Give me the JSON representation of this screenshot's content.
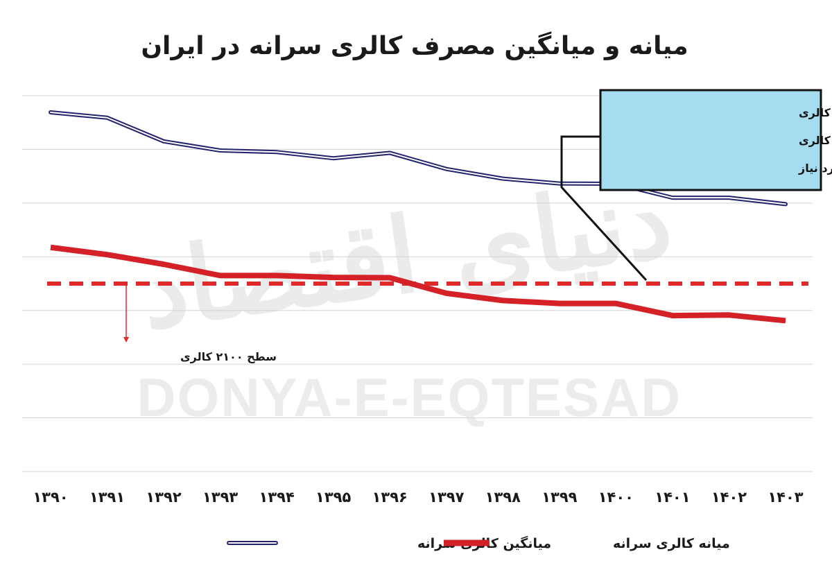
{
  "chart_data": {
    "type": "line",
    "title": "میانه و میانگین مصرف کالری سرانه در ایران",
    "xlabel": "",
    "ylabel": "",
    "categories": [
      "۱۳۹۰",
      "۱۳۹۱",
      "۱۳۹۲",
      "۱۳۹۳",
      "۱۳۹۴",
      "۱۳۹۵",
      "۱۳۹۶",
      "۱۳۹۷",
      "۱۳۹۸",
      "۱۳۹۹",
      "۱۴۰۰",
      "۱۴۰۱",
      "۱۴۰۲",
      "۱۴۰۳"
    ],
    "ylim": [
      1400,
      2800
    ],
    "grid": true,
    "legend_position": "bottom",
    "series": [
      {
        "name": "میانگین کالری سرانه",
        "color": "#23236e",
        "style": "double-line",
        "values": [
          2738,
          2718,
          2630,
          2596,
          2590,
          2567,
          2587,
          2527,
          2491,
          2473,
          2472,
          2420,
          2420,
          2396
        ]
      },
      {
        "name": "میانه کالری سرانه",
        "color": "#d42027",
        "style": "thick",
        "values": [
          2235,
          2208,
          2172,
          2130,
          2130,
          2123,
          2122,
          2064,
          2037,
          2026,
          2026,
          1981,
          1983,
          1962
        ]
      }
    ],
    "threshold": {
      "value": 2100,
      "label": "سطح ۲۱۰۰ کالری",
      "color": "#e02a2a",
      "style": "dashed"
    },
    "annotation": {
      "text_lines": [
        "نقطه برابری میانگین کالری",
        "مصرفی سرانه با حداقل کالری",
        "مورد نیاز"
      ],
      "background": "#a6dcf0",
      "target_category": "۱۴۰۱"
    }
  },
  "watermark": {
    "persian": "دنیای اقتصاد",
    "latin": "DONYA-E-EQTESAD"
  }
}
